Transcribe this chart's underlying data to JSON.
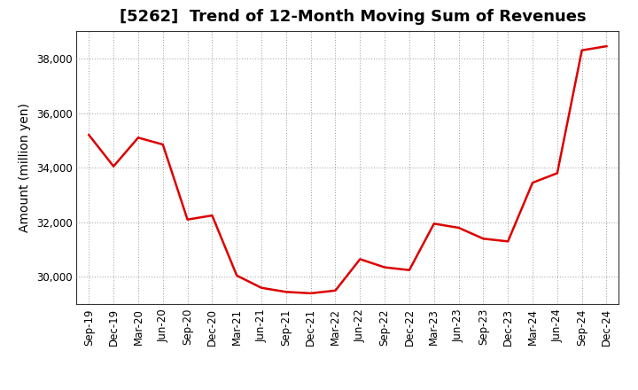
{
  "title": "[5262]  Trend of 12-Month Moving Sum of Revenues",
  "ylabel": "Amount (million yen)",
  "line_color": "#dd0000",
  "background_color": "#ffffff",
  "plot_bg_color": "#ffffff",
  "grid_color": "#999999",
  "x_labels": [
    "Sep-19",
    "Dec-19",
    "Mar-20",
    "Jun-20",
    "Sep-20",
    "Dec-20",
    "Mar-21",
    "Jun-21",
    "Sep-21",
    "Dec-21",
    "Mar-22",
    "Jun-22",
    "Sep-22",
    "Dec-22",
    "Mar-23",
    "Jun-23",
    "Sep-23",
    "Dec-23",
    "Mar-24",
    "Jun-24",
    "Sep-24",
    "Dec-24"
  ],
  "y_values": [
    35200,
    34050,
    35100,
    34850,
    32100,
    32250,
    30050,
    29600,
    29450,
    29400,
    29500,
    30650,
    30350,
    30250,
    31950,
    31800,
    31400,
    31300,
    33450,
    33800,
    38300,
    38450
  ],
  "ylim": [
    29000,
    39000
  ],
  "yticks": [
    30000,
    32000,
    34000,
    36000,
    38000
  ],
  "title_fontsize": 13,
  "axis_label_fontsize": 10,
  "tick_fontsize": 8.5,
  "line_width": 1.8
}
